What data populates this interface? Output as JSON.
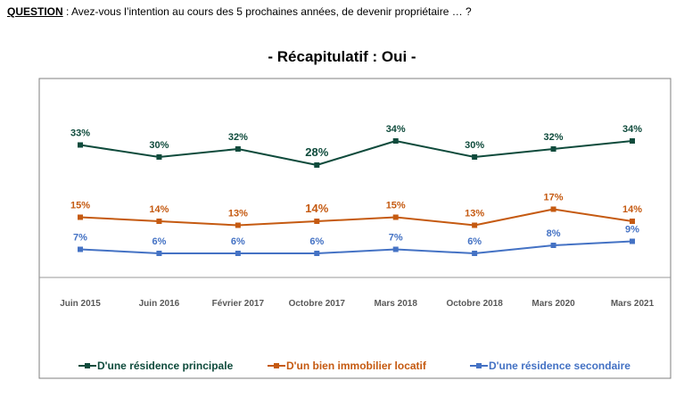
{
  "question": {
    "label": "QUESTION",
    "text": " :  Avez-vous l’intention au cours des 5 prochaines années, de devenir propriétaire … ?"
  },
  "chart_data": {
    "type": "line",
    "title": "- Récapitulatif : Oui -",
    "categories": [
      "Juin 2015",
      "Juin 2016",
      "Février 2017",
      "Octobre 2017",
      "Mars 2018",
      "Octobre 2018",
      "Mars 2020",
      "Mars 2021"
    ],
    "ylim": [
      0,
      40
    ],
    "grid": false,
    "legend_position": "bottom",
    "unit": "%",
    "series": [
      {
        "name": "D'une résidence principale",
        "color": "#0f4b3c",
        "values": [
          33,
          30,
          32,
          28,
          34,
          30,
          32,
          34
        ],
        "labels": [
          "33%",
          "30%",
          "32%",
          "28%",
          "34%",
          "30%",
          "32%",
          "34%"
        ]
      },
      {
        "name": "D'un bien immobilier locatif",
        "color": "#c55a11",
        "values": [
          15,
          14,
          13,
          14,
          15,
          13,
          17,
          14
        ],
        "labels": [
          "15%",
          "14%",
          "13%",
          "14%",
          "15%",
          "13%",
          "17%",
          "14%"
        ]
      },
      {
        "name": "D'une résidence secondaire",
        "color": "#4472c4",
        "values": [
          7,
          6,
          6,
          6,
          7,
          6,
          8,
          9
        ],
        "labels": [
          "7%",
          "6%",
          "6%",
          "6%",
          "7%",
          "6%",
          "8%",
          "9%"
        ]
      }
    ]
  }
}
